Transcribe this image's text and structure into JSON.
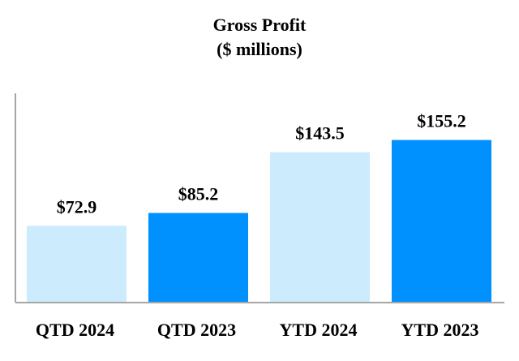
{
  "chart_data": {
    "type": "bar",
    "title": "Gross Profit",
    "subtitle": "($ millions)",
    "categories": [
      "QTD 2024",
      "QTD 2023",
      "YTD 2024",
      "YTD 2023"
    ],
    "values": [
      72.9,
      85.2,
      143.5,
      155.2
    ],
    "data_labels": [
      "$72.9",
      "$85.2",
      "$143.5",
      "$155.2"
    ],
    "colors": [
      "#CCEBFD",
      "#0091FF",
      "#CCEBFD",
      "#0091FF"
    ],
    "axis_color": "#A6A6A6",
    "xlabel": "",
    "ylabel": "",
    "ylim": [
      0,
      200
    ],
    "grid": false,
    "legend": "none"
  }
}
